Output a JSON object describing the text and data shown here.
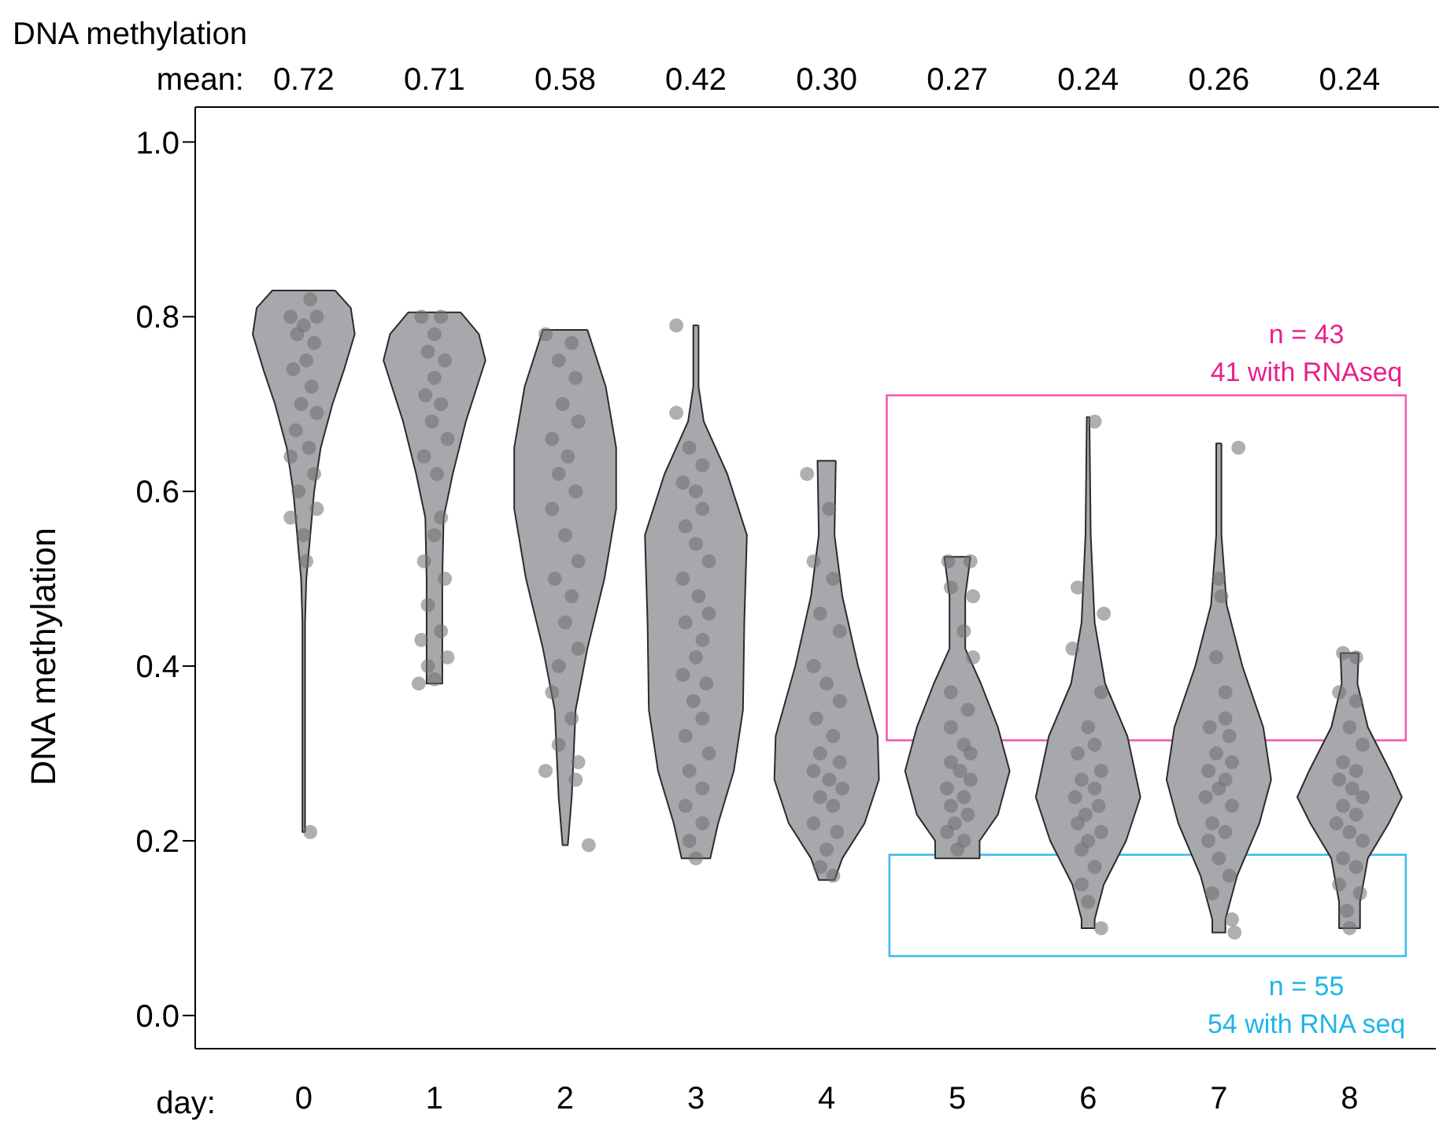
{
  "chart_data": {
    "type": "scatter",
    "xlabel": "day:",
    "ylabel": "DNA methylation",
    "xlim": [
      -0.83,
      8.66
    ],
    "xticks": [
      0,
      1,
      2,
      3,
      4,
      5,
      6,
      7,
      8
    ],
    "ylim": [
      -0.038,
      1.04
    ],
    "yticks": [
      {
        "value": 0,
        "label": "0.0"
      },
      0.2,
      0.4,
      0.6,
      0.8,
      {
        "value": 1,
        "label": "1.0"
      }
    ],
    "annotations": [
      "DNA methylation",
      "mean:",
      "0.72",
      "0.71",
      "0.58",
      "0.42",
      "0.30",
      "0.27",
      "0.24",
      "0.26",
      "0.24",
      "n = 43",
      "41 with RNAseq",
      "n = 55",
      "54 with RNA seq"
    ],
    "series": [
      {
        "type": "area",
        "color": "#a7a8ac",
        "x": [
          0.24,
          0.36,
          0.39,
          0.31,
          0.22,
          0.13,
          0.08,
          0.05,
          0.02,
          0.01,
          0.01,
          -0.01,
          -0.01,
          -0.02,
          -0.05,
          -0.08,
          -0.13,
          -0.22,
          -0.31,
          -0.39,
          -0.36,
          -0.24,
          0.24
        ],
        "values": [
          0.83,
          0.81,
          0.78,
          0.74,
          0.7,
          0.65,
          0.6,
          0.55,
          0.5,
          0.45,
          0.21,
          0.21,
          0.45,
          0.5,
          0.55,
          0.6,
          0.65,
          0.7,
          0.74,
          0.78,
          0.81,
          0.83,
          0.83
        ]
      },
      {
        "type": "area",
        "color": "#a7a8ac",
        "x": [
          1.2,
          1.34,
          1.39,
          1.24,
          1.14,
          1.07,
          1.06,
          1.06,
          0.94,
          0.94,
          0.93,
          0.86,
          0.76,
          0.61,
          0.66,
          0.8,
          1.2
        ],
        "values": [
          0.805,
          0.78,
          0.75,
          0.68,
          0.62,
          0.57,
          0.5,
          0.38,
          0.38,
          0.5,
          0.57,
          0.62,
          0.68,
          0.75,
          0.78,
          0.805,
          0.805
        ]
      },
      {
        "type": "area",
        "color": "#a7a8ac",
        "x": [
          2.17,
          2.31,
          2.39,
          2.39,
          2.3,
          2.17,
          2.08,
          2.05,
          2.02,
          1.98,
          1.95,
          1.92,
          1.83,
          1.7,
          1.61,
          1.61,
          1.69,
          1.83,
          2.17
        ],
        "values": [
          0.785,
          0.72,
          0.65,
          0.58,
          0.5,
          0.42,
          0.35,
          0.25,
          0.195,
          0.195,
          0.25,
          0.35,
          0.42,
          0.5,
          0.58,
          0.65,
          0.72,
          0.785,
          0.785
        ]
      },
      {
        "type": "area",
        "color": "#a7a8ac",
        "x": [
          3.02,
          3.02,
          3.06,
          3.24,
          3.39,
          3.37,
          3.36,
          3.29,
          3.17,
          3.11,
          2.89,
          2.83,
          2.71,
          2.64,
          2.63,
          2.61,
          2.76,
          2.94,
          2.98,
          2.98,
          3.02
        ],
        "values": [
          0.79,
          0.72,
          0.68,
          0.62,
          0.55,
          0.45,
          0.35,
          0.28,
          0.22,
          0.18,
          0.18,
          0.22,
          0.28,
          0.35,
          0.45,
          0.55,
          0.62,
          0.68,
          0.72,
          0.79,
          0.79
        ]
      },
      {
        "type": "area",
        "color": "#a7a8ac",
        "x": [
          4.07,
          4.06,
          4.12,
          4.24,
          4.39,
          4.4,
          4.29,
          4.12,
          4.06,
          3.94,
          3.88,
          3.71,
          3.6,
          3.61,
          3.76,
          3.88,
          3.94,
          3.93,
          4.07
        ],
        "values": [
          0.635,
          0.55,
          0.48,
          0.4,
          0.32,
          0.27,
          0.22,
          0.18,
          0.155,
          0.155,
          0.18,
          0.22,
          0.27,
          0.32,
          0.4,
          0.48,
          0.55,
          0.635,
          0.635
        ]
      },
      {
        "type": "area",
        "color": "#a7a8ac",
        "x": [
          5.1,
          5.06,
          5.06,
          5.18,
          5.31,
          5.4,
          5.31,
          5.17,
          5.17,
          4.83,
          4.83,
          4.69,
          4.6,
          4.69,
          4.82,
          4.94,
          4.94,
          4.9,
          5.1
        ],
        "values": [
          0.525,
          0.48,
          0.42,
          0.38,
          0.33,
          0.28,
          0.23,
          0.2,
          0.18,
          0.18,
          0.2,
          0.23,
          0.28,
          0.33,
          0.38,
          0.42,
          0.48,
          0.525,
          0.525
        ]
      },
      {
        "type": "area",
        "color": "#a7a8ac",
        "x": [
          6.01,
          6.02,
          6.05,
          6.13,
          6.3,
          6.4,
          6.29,
          6.12,
          6.05,
          6.05,
          5.95,
          5.95,
          5.88,
          5.71,
          5.6,
          5.7,
          5.87,
          5.95,
          5.98,
          5.99,
          6.01
        ],
        "values": [
          0.685,
          0.55,
          0.45,
          0.38,
          0.32,
          0.25,
          0.2,
          0.15,
          0.11,
          0.1,
          0.1,
          0.11,
          0.15,
          0.2,
          0.25,
          0.32,
          0.38,
          0.45,
          0.55,
          0.685,
          0.685
        ]
      },
      {
        "type": "area",
        "color": "#a7a8ac",
        "x": [
          7.02,
          7.02,
          7.06,
          7.18,
          7.34,
          7.4,
          7.31,
          7.14,
          7.05,
          7.05,
          6.95,
          6.95,
          6.86,
          6.69,
          6.6,
          6.66,
          6.82,
          6.94,
          6.98,
          6.98,
          7.02
        ],
        "values": [
          0.655,
          0.55,
          0.47,
          0.4,
          0.33,
          0.27,
          0.22,
          0.16,
          0.11,
          0.095,
          0.095,
          0.11,
          0.16,
          0.22,
          0.27,
          0.33,
          0.4,
          0.47,
          0.55,
          0.655,
          0.655
        ]
      },
      {
        "type": "area",
        "color": "#a7a8ac",
        "x": [
          8.07,
          8.06,
          8.14,
          8.31,
          8.4,
          8.3,
          8.14,
          8.08,
          8.08,
          7.92,
          7.92,
          7.86,
          7.7,
          7.6,
          7.69,
          7.86,
          7.94,
          7.93,
          8.07
        ],
        "values": [
          0.415,
          0.38,
          0.33,
          0.28,
          0.25,
          0.22,
          0.18,
          0.13,
          0.1,
          0.1,
          0.13,
          0.18,
          0.22,
          0.25,
          0.28,
          0.33,
          0.38,
          0.415,
          0.415
        ]
      },
      {
        "type": "scatter",
        "color": "#6e6e70",
        "x": [
          0.05,
          -0.1,
          0.1,
          0.0,
          -0.05,
          0.08,
          0.02,
          -0.08,
          0.06,
          -0.02,
          0.1,
          -0.06,
          0.04,
          -0.1,
          0.08,
          -0.04,
          0.1,
          -0.1,
          0.0,
          0.02,
          0.05,
          0.9,
          1.05,
          1.0,
          0.95,
          1.08,
          1.0,
          0.93,
          1.05,
          0.98,
          1.1,
          0.92,
          1.02,
          1.05,
          1.0,
          0.92,
          1.08,
          0.95,
          1.05,
          0.9,
          1.1,
          0.95,
          1.0,
          0.88,
          1.85,
          2.05,
          1.95,
          2.08,
          1.98,
          2.1,
          1.9,
          2.02,
          1.95,
          2.08,
          1.9,
          2.0,
          2.1,
          1.92,
          2.05,
          2.0,
          2.1,
          1.95,
          1.9,
          2.05,
          1.95,
          2.1,
          1.85,
          2.08,
          2.18,
          2.85,
          2.85,
          2.95,
          3.05,
          2.9,
          3.0,
          3.05,
          2.92,
          3.0,
          3.1,
          2.9,
          3.02,
          3.1,
          2.92,
          3.05,
          3.0,
          2.9,
          3.08,
          2.98,
          3.05,
          2.92,
          3.1,
          2.95,
          3.05,
          2.92,
          3.05,
          2.95,
          3.0,
          3.85,
          4.02,
          3.9,
          4.05,
          3.95,
          4.1,
          3.9,
          4.0,
          4.1,
          3.92,
          4.05,
          3.95,
          4.1,
          3.9,
          4.02,
          4.12,
          3.95,
          4.05,
          3.9,
          4.08,
          4.0,
          3.95,
          4.05,
          4.93,
          5.1,
          4.95,
          5.12,
          5.05,
          5.12,
          4.95,
          5.08,
          4.95,
          5.05,
          5.1,
          4.95,
          5.02,
          5.1,
          4.92,
          5.05,
          4.95,
          5.08,
          4.98,
          4.92,
          5.05,
          5.0,
          6.05,
          5.92,
          6.12,
          5.88,
          6.1,
          6.0,
          6.05,
          5.92,
          6.1,
          5.95,
          6.05,
          5.9,
          6.08,
          5.98,
          5.92,
          6.1,
          6.0,
          5.95,
          6.05,
          5.95,
          6.0,
          6.1,
          7.15,
          7.0,
          7.02,
          6.98,
          7.05,
          7.05,
          6.93,
          7.08,
          6.98,
          7.1,
          6.92,
          7.05,
          7.0,
          6.9,
          7.1,
          6.95,
          7.05,
          6.92,
          7.0,
          7.08,
          6.95,
          7.1,
          7.12,
          7.95,
          8.05,
          7.92,
          8.05,
          8.0,
          8.1,
          7.95,
          8.05,
          7.92,
          8.02,
          8.1,
          7.95,
          8.05,
          7.9,
          8.0,
          8.1,
          7.95,
          8.05,
          7.92,
          8.08,
          7.98,
          8.0
        ],
        "values": [
          0.82,
          0.8,
          0.8,
          0.79,
          0.78,
          0.77,
          0.75,
          0.74,
          0.72,
          0.7,
          0.69,
          0.67,
          0.65,
          0.64,
          0.62,
          0.6,
          0.58,
          0.57,
          0.55,
          0.52,
          0.21,
          0.8,
          0.8,
          0.78,
          0.76,
          0.75,
          0.73,
          0.71,
          0.7,
          0.68,
          0.66,
          0.64,
          0.62,
          0.57,
          0.55,
          0.52,
          0.5,
          0.47,
          0.44,
          0.43,
          0.41,
          0.4,
          0.385,
          0.38,
          0.78,
          0.77,
          0.75,
          0.73,
          0.7,
          0.68,
          0.66,
          0.64,
          0.62,
          0.6,
          0.58,
          0.55,
          0.52,
          0.5,
          0.48,
          0.45,
          0.42,
          0.4,
          0.37,
          0.34,
          0.31,
          0.29,
          0.28,
          0.27,
          0.195,
          0.79,
          0.69,
          0.65,
          0.63,
          0.61,
          0.6,
          0.58,
          0.56,
          0.54,
          0.52,
          0.5,
          0.48,
          0.46,
          0.45,
          0.43,
          0.41,
          0.39,
          0.38,
          0.36,
          0.34,
          0.32,
          0.3,
          0.28,
          0.26,
          0.24,
          0.22,
          0.2,
          0.18,
          0.62,
          0.58,
          0.52,
          0.5,
          0.46,
          0.44,
          0.4,
          0.38,
          0.36,
          0.34,
          0.32,
          0.3,
          0.29,
          0.28,
          0.27,
          0.26,
          0.25,
          0.24,
          0.22,
          0.21,
          0.19,
          0.17,
          0.16,
          0.52,
          0.52,
          0.49,
          0.48,
          0.44,
          0.41,
          0.37,
          0.35,
          0.33,
          0.31,
          0.3,
          0.29,
          0.28,
          0.27,
          0.26,
          0.25,
          0.24,
          0.23,
          0.22,
          0.21,
          0.2,
          0.19,
          0.68,
          0.49,
          0.46,
          0.42,
          0.37,
          0.33,
          0.31,
          0.3,
          0.28,
          0.27,
          0.26,
          0.25,
          0.24,
          0.23,
          0.22,
          0.21,
          0.2,
          0.19,
          0.17,
          0.15,
          0.13,
          0.1,
          0.65,
          0.5,
          0.48,
          0.41,
          0.37,
          0.34,
          0.33,
          0.32,
          0.3,
          0.29,
          0.28,
          0.27,
          0.26,
          0.25,
          0.24,
          0.22,
          0.21,
          0.2,
          0.18,
          0.16,
          0.14,
          0.11,
          0.095,
          0.415,
          0.41,
          0.37,
          0.36,
          0.33,
          0.31,
          0.29,
          0.28,
          0.27,
          0.26,
          0.25,
          0.24,
          0.23,
          0.22,
          0.21,
          0.2,
          0.18,
          0.17,
          0.15,
          0.14,
          0.12,
          0.1
        ]
      }
    ]
  }
}
